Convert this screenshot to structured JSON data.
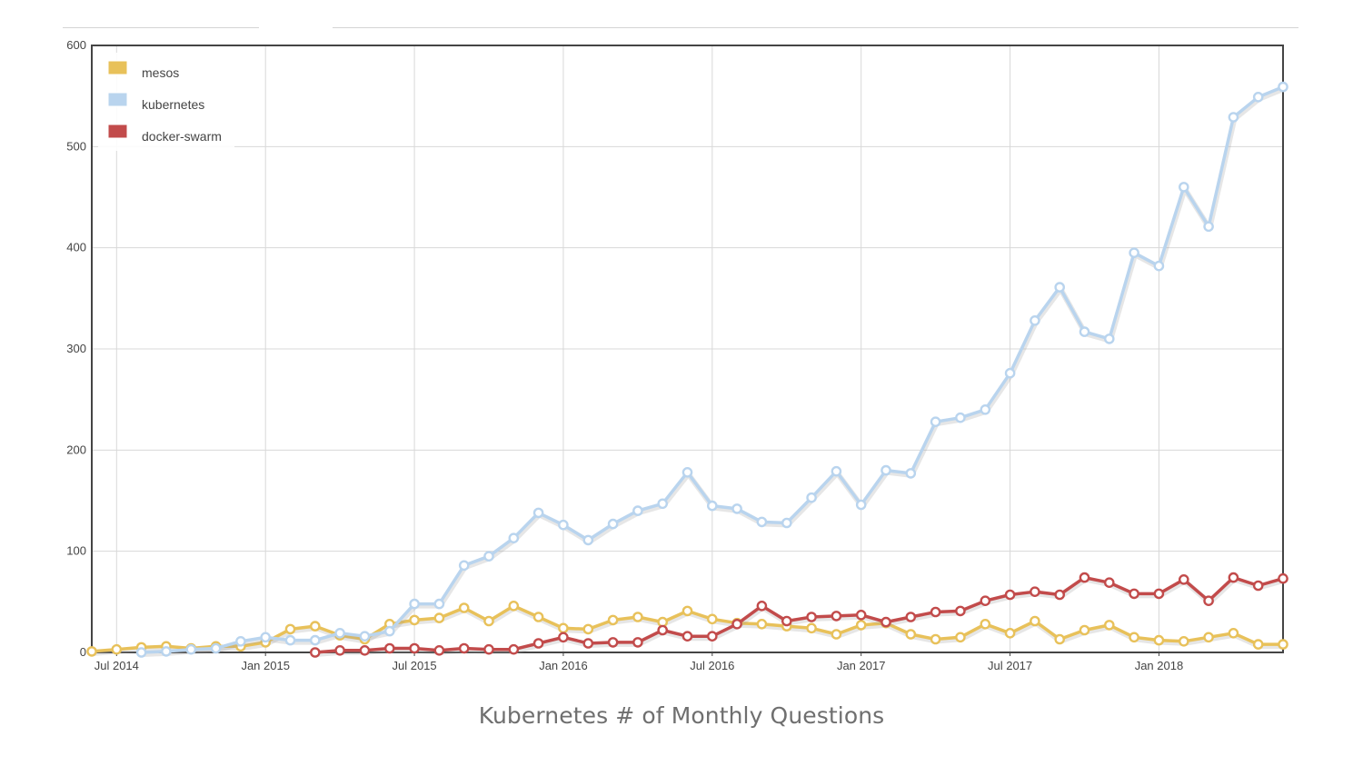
{
  "caption": "Kubernetes # of Monthly Questions",
  "colors": {
    "mesos": "#e8c15a",
    "kubernetes": "#b9d4ee",
    "docker_swarm": "#c24b4b",
    "grid": "#d8d8d8",
    "frame": "#444444"
  },
  "chart_data": {
    "type": "line",
    "title": "",
    "xlabel": "",
    "ylabel": "",
    "ylim": [
      0,
      600
    ],
    "yticks": [
      0,
      100,
      200,
      300,
      400,
      500,
      600
    ],
    "x_start": "2014-06",
    "x_tick_labels": [
      "Jul 2014",
      "Jan 2015",
      "Jul 2015",
      "Jan 2016",
      "Jul 2016",
      "Jan 2017",
      "Jul 2017",
      "Jan 2018"
    ],
    "x_tick_months": [
      "2014-07",
      "2015-01",
      "2015-07",
      "2016-01",
      "2016-07",
      "2017-01",
      "2017-07",
      "2018-01"
    ],
    "grid": true,
    "legend_position": "top-left",
    "series": [
      {
        "name": "mesos",
        "color": "#e8c15a",
        "start": "2014-06",
        "values": [
          1,
          3,
          5,
          6,
          4,
          6,
          6,
          10,
          23,
          26,
          17,
          13,
          28,
          32,
          34,
          44,
          31,
          46,
          35,
          24,
          23,
          32,
          35,
          30,
          41,
          33,
          29,
          28,
          26,
          24,
          18,
          27,
          29,
          18,
          13,
          15,
          28,
          19,
          31,
          13,
          22,
          27,
          15,
          12,
          11,
          15,
          19,
          8,
          8
        ]
      },
      {
        "name": "kubernetes",
        "color": "#b9d4ee",
        "start": "2014-08",
        "values": [
          0,
          1,
          3,
          4,
          11,
          15,
          12,
          12,
          19,
          16,
          21,
          48,
          48,
          86,
          95,
          113,
          138,
          126,
          111,
          127,
          140,
          147,
          178,
          145,
          142,
          129,
          128,
          153,
          179,
          146,
          180,
          177,
          228,
          232,
          240,
          276,
          328,
          361,
          317,
          310,
          395,
          382,
          460,
          421,
          529,
          549,
          559
        ]
      },
      {
        "name": "docker-swarm",
        "color": "#c24b4b",
        "start": "2015-03",
        "values": [
          0,
          2,
          2,
          4,
          4,
          2,
          4,
          3,
          3,
          9,
          15,
          9,
          10,
          10,
          22,
          16,
          16,
          28,
          46,
          31,
          35,
          36,
          37,
          30,
          35,
          40,
          41,
          51,
          57,
          60,
          57,
          74,
          69,
          58,
          58,
          72,
          51,
          74,
          66,
          73
        ]
      }
    ]
  }
}
